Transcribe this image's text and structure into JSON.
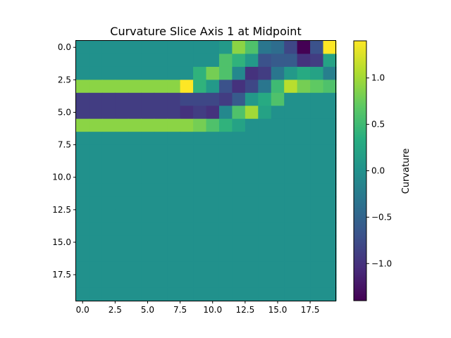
{
  "chart_data": {
    "type": "heatmap",
    "title": "Curvature Slice Axis 1 at Midpoint",
    "colormap": "viridis",
    "vmin": -1.4,
    "vmax": 1.4,
    "colorbar_label": "Curvature",
    "grid": false,
    "colorbar_position": "right",
    "x_ticks": [
      0.0,
      2.5,
      5.0,
      7.5,
      10.0,
      12.5,
      15.0,
      17.5
    ],
    "x_tick_labels": [
      "0.0",
      "2.5",
      "5.0",
      "7.5",
      "10.0",
      "12.5",
      "15.0",
      "17.5"
    ],
    "y_ticks": [
      0.0,
      2.5,
      5.0,
      7.5,
      10.0,
      12.5,
      15.0,
      17.5
    ],
    "y_tick_labels": [
      "0.0",
      "2.5",
      "5.0",
      "7.5",
      "10.0",
      "12.5",
      "15.0",
      "17.5"
    ],
    "colorbar_ticks": [
      -1.0,
      -0.5,
      0.0,
      0.5,
      1.0
    ],
    "colorbar_tick_labels": [
      "−1.0",
      "−0.5",
      "0.0",
      "0.5",
      "1.0"
    ],
    "values": [
      [
        0,
        0,
        0,
        0,
        0,
        0,
        0,
        0,
        0,
        0,
        0,
        0.1,
        0.9,
        0.6,
        -0.3,
        -0.4,
        -0.8,
        -1.4,
        -0.7,
        1.4
      ],
      [
        0,
        0,
        0,
        0,
        0,
        0,
        0,
        0,
        0,
        0,
        0,
        0.6,
        0.4,
        0.1,
        -0.7,
        -0.6,
        -0.6,
        -1.0,
        -0.9,
        0.2
      ],
      [
        0,
        0,
        0,
        0,
        0,
        0,
        0,
        0,
        0,
        0.4,
        0.8,
        0.6,
        -0.1,
        -1.0,
        -0.9,
        -0.3,
        0.1,
        0.3,
        0.2,
        -0.2
      ],
      [
        0.9,
        0.9,
        0.9,
        0.9,
        0.9,
        0.9,
        0.9,
        0.9,
        1.4,
        0.4,
        0.1,
        -0.7,
        -1.0,
        -0.8,
        -0.3,
        0.5,
        1.1,
        0.8,
        0.7,
        0.6
      ],
      [
        -0.9,
        -0.9,
        -0.9,
        -0.9,
        -0.9,
        -0.9,
        -0.9,
        -0.9,
        -0.8,
        -0.8,
        -0.8,
        -0.9,
        -0.6,
        0.1,
        0.3,
        0.6,
        0,
        0,
        0,
        0
      ],
      [
        -0.9,
        -0.9,
        -0.9,
        -0.9,
        -0.9,
        -0.9,
        -0.9,
        -0.9,
        -1.0,
        -0.9,
        -1.0,
        -0.1,
        0.6,
        1.0,
        0.2,
        0,
        0,
        0,
        0,
        0
      ],
      [
        0.9,
        0.9,
        0.9,
        0.9,
        0.9,
        0.9,
        0.9,
        0.9,
        0.9,
        0.8,
        0.6,
        0.4,
        0.2,
        0,
        0,
        0,
        0,
        0,
        0,
        0
      ],
      [
        0,
        0,
        0,
        0,
        0,
        0,
        0,
        0,
        0,
        0,
        0,
        0,
        0,
        0,
        0,
        0,
        0,
        0,
        0,
        0
      ],
      [
        0,
        0,
        0,
        0,
        0,
        0,
        0,
        0,
        0,
        0,
        0,
        0,
        0,
        0,
        0,
        0,
        0,
        0,
        0,
        0
      ],
      [
        0,
        0,
        0,
        0,
        0,
        0,
        0,
        0,
        0,
        0,
        0,
        0,
        0,
        0,
        0,
        0,
        0,
        0,
        0,
        0
      ],
      [
        0,
        0,
        0,
        0,
        0,
        0,
        0,
        0,
        0,
        0,
        0,
        0,
        0,
        0,
        0,
        0,
        0,
        0,
        0,
        0
      ],
      [
        0,
        0,
        0,
        0,
        0,
        0,
        0,
        0,
        0,
        0,
        0,
        0,
        0,
        0,
        0,
        0,
        0,
        0,
        0,
        0
      ],
      [
        0,
        0,
        0,
        0,
        0,
        0,
        0,
        0,
        0,
        0,
        0,
        0,
        0,
        0,
        0,
        0,
        0,
        0,
        0,
        0
      ],
      [
        0,
        0,
        0,
        0,
        0,
        0,
        0,
        0,
        0,
        0,
        0,
        0,
        0,
        0,
        0,
        0,
        0,
        0,
        0,
        0
      ],
      [
        0,
        0,
        0,
        0,
        0,
        0,
        0,
        0,
        0,
        0,
        0,
        0,
        0,
        0,
        0,
        0,
        0,
        0,
        0,
        0
      ],
      [
        0,
        0,
        0,
        0,
        0,
        0,
        0,
        0,
        0,
        0,
        0,
        0,
        0,
        0,
        0,
        0,
        0,
        0,
        0,
        0
      ],
      [
        0,
        0,
        0,
        0,
        0,
        0,
        0,
        0,
        0,
        0,
        0,
        0,
        0,
        0,
        0,
        0,
        0,
        0,
        0,
        0
      ],
      [
        0,
        0,
        0,
        0,
        0,
        0,
        0,
        0,
        0,
        0,
        0,
        0,
        0,
        0,
        0,
        0,
        0,
        0,
        0,
        0
      ],
      [
        0,
        0,
        0,
        0,
        0,
        0,
        0,
        0,
        0,
        0,
        0,
        0,
        0,
        0,
        0,
        0,
        0,
        0,
        0,
        0
      ],
      [
        0,
        0,
        0,
        0,
        0,
        0,
        0,
        0,
        0,
        0,
        0,
        0,
        0,
        0,
        0,
        0,
        0,
        0,
        0,
        0
      ]
    ]
  }
}
